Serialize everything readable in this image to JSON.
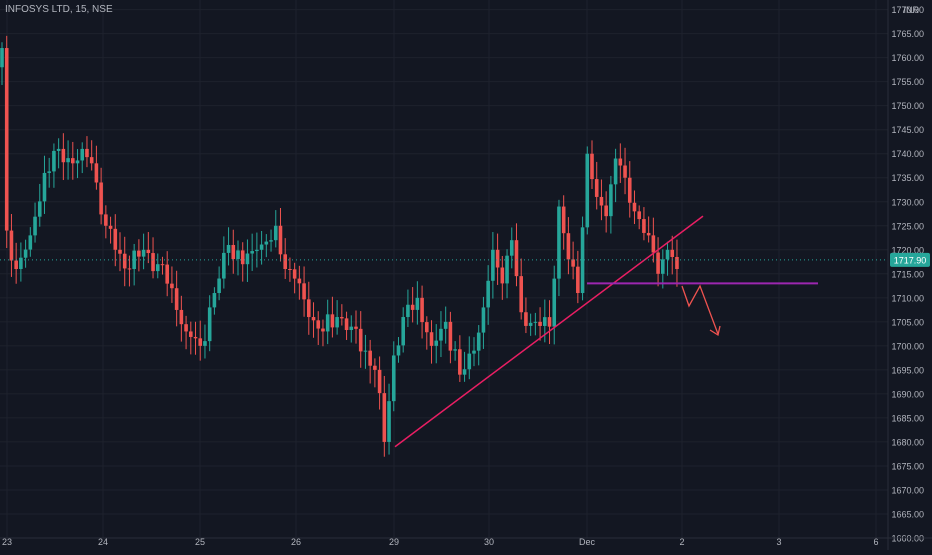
{
  "header": {
    "title": "INFOSYS LTD, 15, NSE"
  },
  "price_axis": {
    "currency": "INR"
  },
  "last_price": {
    "label": "1717.90",
    "value": 1717.9,
    "color": "#26a69a"
  },
  "colors": {
    "up": "#26a69a",
    "down": "#ef5350",
    "background": "#131722",
    "trendline": "#e91e63",
    "support": "#9c27b0",
    "projection": "#ef5350"
  },
  "chart_data": {
    "type": "candlestick",
    "ylim": [
      1660,
      1772
    ],
    "y_ticks": [
      "1660.00",
      "1665.00",
      "1670.00",
      "1675.00",
      "1680.00",
      "1685.00",
      "1690.00",
      "1695.00",
      "1700.00",
      "1705.00",
      "1710.00",
      "1715.00",
      "1720.00",
      "1725.00",
      "1730.00",
      "1735.00",
      "1740.00",
      "1745.00",
      "1750.00",
      "1755.00",
      "1760.00",
      "1765.00",
      "1770.00"
    ],
    "x_ticks": [
      "23",
      "24",
      "25",
      "26",
      "29",
      "30",
      "Dec",
      "2",
      "3",
      "6"
    ],
    "grid": true,
    "annotations": [
      {
        "type": "trendline",
        "from": {
          "x": "29",
          "y": 1679
        },
        "to": {
          "x": "2",
          "y": 1727
        }
      },
      {
        "type": "horizontal_segment",
        "y": 1713,
        "from": "Dec",
        "to": "3"
      },
      {
        "type": "projection_arrow",
        "direction": "down",
        "from_y": 1713,
        "to_y": 1703
      }
    ],
    "anchors": [
      {
        "i": 0,
        "c": 1762
      },
      {
        "i": 1,
        "c": 1724
      },
      {
        "i": 3,
        "c": 1716
      },
      {
        "i": 6,
        "c": 1723
      },
      {
        "i": 9,
        "c": 1736
      },
      {
        "i": 12,
        "c": 1741
      },
      {
        "i": 15,
        "c": 1738
      },
      {
        "i": 17,
        "c": 1741
      },
      {
        "i": 19,
        "c": 1738
      },
      {
        "i": 22,
        "c": 1725
      },
      {
        "i": 24,
        "c": 1720
      },
      {
        "i": 27,
        "c": 1716
      },
      {
        "i": 30,
        "c": 1720
      },
      {
        "i": 33,
        "c": 1717
      },
      {
        "i": 36,
        "c": 1712
      },
      {
        "i": 39,
        "c": 1703
      },
      {
        "i": 42,
        "c": 1700
      },
      {
        "i": 45,
        "c": 1711
      },
      {
        "i": 48,
        "c": 1721
      },
      {
        "i": 51,
        "c": 1717
      },
      {
        "i": 54,
        "c": 1720
      },
      {
        "i": 57,
        "c": 1722
      },
      {
        "i": 58,
        "c": 1725
      },
      {
        "i": 60,
        "c": 1716
      },
      {
        "i": 62,
        "c": 1714
      },
      {
        "i": 65,
        "c": 1706
      },
      {
        "i": 68,
        "c": 1703
      },
      {
        "i": 71,
        "c": 1706
      },
      {
        "i": 74,
        "c": 1704
      },
      {
        "i": 77,
        "c": 1699
      },
      {
        "i": 79,
        "c": 1695
      },
      {
        "i": 81,
        "c": 1680
      },
      {
        "i": 83,
        "c": 1698
      },
      {
        "i": 85,
        "c": 1706
      },
      {
        "i": 88,
        "c": 1710
      },
      {
        "i": 91,
        "c": 1700
      },
      {
        "i": 94,
        "c": 1705
      },
      {
        "i": 97,
        "c": 1694
      },
      {
        "i": 100,
        "c": 1699
      },
      {
        "i": 102,
        "c": 1708
      },
      {
        "i": 104,
        "c": 1720
      },
      {
        "i": 106,
        "c": 1713
      },
      {
        "i": 108,
        "c": 1722
      },
      {
        "i": 110,
        "c": 1707
      },
      {
        "i": 113,
        "c": 1705
      },
      {
        "i": 116,
        "c": 1704
      },
      {
        "i": 118,
        "c": 1729
      },
      {
        "i": 120,
        "c": 1718
      },
      {
        "i": 122,
        "c": 1711
      },
      {
        "i": 124,
        "c": 1740
      },
      {
        "i": 126,
        "c": 1731
      },
      {
        "i": 128,
        "c": 1727
      },
      {
        "i": 130,
        "c": 1739
      },
      {
        "i": 132,
        "c": 1735
      },
      {
        "i": 134,
        "c": 1728
      },
      {
        "i": 137,
        "c": 1723
      },
      {
        "i": 139,
        "c": 1715
      },
      {
        "i": 141,
        "c": 1720
      },
      {
        "i": 143,
        "c": 1716
      }
    ],
    "bar_count": 144
  }
}
